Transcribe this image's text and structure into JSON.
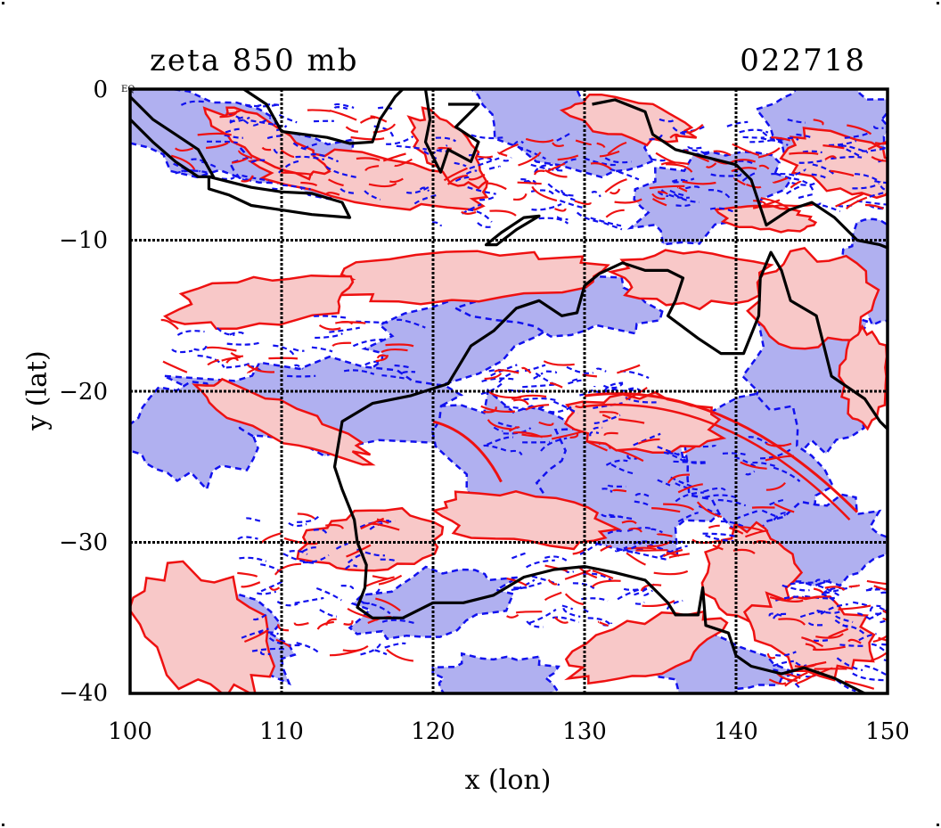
{
  "title_left": "zeta 850 mb",
  "title_right": "022718",
  "xlabel": "x (lon)",
  "ylabel": "y (lat)",
  "equator_mark": "EQ",
  "xticks": [
    "100",
    "110",
    "120",
    "130",
    "140",
    "150"
  ],
  "yticks": [
    "0",
    "−10",
    "−20",
    "−30",
    "−40"
  ],
  "map": {
    "lon_range": [
      100,
      150
    ],
    "lat_range": [
      -40,
      0
    ],
    "grid_lon": [
      110,
      120,
      130,
      140
    ],
    "grid_lat": [
      -10,
      -20,
      -30
    ],
    "positive_color": "#ee1111",
    "positive_fill": "#f8c8c8",
    "negative_color": "#1111ee",
    "negative_fill": "#b0b0f0",
    "coast_color": "#000000",
    "grid_color": "#000000"
  }
}
